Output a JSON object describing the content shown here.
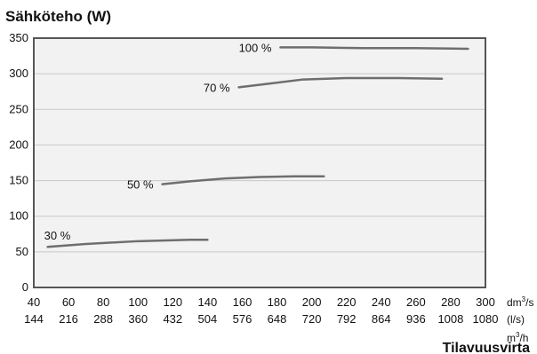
{
  "chart_data": {
    "type": "line",
    "title": "Sähköteho (W)",
    "xlabel": "Tilavuusvirta",
    "ylabel": "",
    "xlim": [
      40,
      300
    ],
    "ylim": [
      0,
      350
    ],
    "x_ticks": [
      40,
      60,
      80,
      100,
      120,
      140,
      160,
      180,
      200,
      220,
      240,
      260,
      280,
      300
    ],
    "x_ticks_m3h": [
      144,
      216,
      288,
      360,
      432,
      504,
      576,
      648,
      720,
      792,
      864,
      936,
      1008,
      1080
    ],
    "y_ticks": [
      0,
      50,
      100,
      150,
      200,
      250,
      300,
      350
    ],
    "x_units": {
      "dm3s_base": "dm",
      "dm3s_sup": "3",
      "dm3s_tail": "/s",
      "ls": "(l/s)",
      "m3h_base": "m",
      "m3h_sup": "3",
      "m3h_tail": "/h"
    },
    "grid": true,
    "series_color": "#6e6e6e",
    "series": [
      {
        "name": "30 %",
        "x": [
          48,
          70,
          100,
          130,
          140
        ],
        "y": [
          57,
          61,
          65,
          67,
          67
        ]
      },
      {
        "name": "50 %",
        "x": [
          114,
          130,
          150,
          170,
          190,
          207
        ],
        "y": [
          145,
          149,
          153,
          155,
          156,
          156
        ]
      },
      {
        "name": "70 %",
        "x": [
          158,
          175,
          195,
          220,
          250,
          275
        ],
        "y": [
          281,
          286,
          292,
          294,
          294,
          293
        ]
      },
      {
        "name": "100 %",
        "x": [
          182,
          200,
          230,
          260,
          290
        ],
        "y": [
          337,
          337,
          336,
          336,
          335
        ]
      }
    ]
  }
}
